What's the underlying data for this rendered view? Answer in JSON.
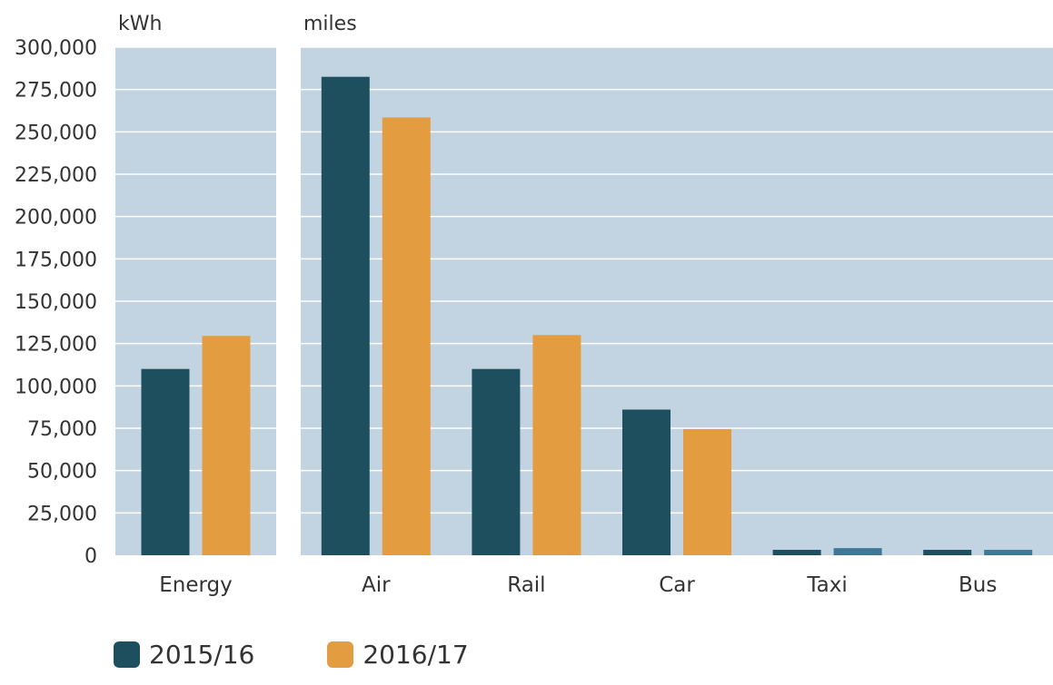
{
  "chart_data": {
    "type": "bar",
    "yticks": [
      "0",
      "25,000",
      "50,000",
      "75,000",
      "100,000",
      "125,000",
      "150,000",
      "175,000",
      "200,000",
      "225,000",
      "250,000",
      "275,000",
      "300,000"
    ],
    "ylim": [
      0,
      300000
    ],
    "grid": true,
    "legend_position": "bottom-left",
    "panels": [
      {
        "unit_label": "kWh",
        "categories": [
          "Energy"
        ],
        "series": [
          {
            "name": "2015/16",
            "values": [
              110000
            ]
          },
          {
            "name": "2016/17",
            "values": [
              129500
            ]
          }
        ]
      },
      {
        "unit_label": "miles",
        "categories": [
          "Air",
          "Rail",
          "Car",
          "Taxi",
          "Bus"
        ],
        "series": [
          {
            "name": "2015/16",
            "values": [
              282500,
              110000,
              86000,
              3200,
              3200
            ]
          },
          {
            "name": "2016/17",
            "values": [
              258500,
              130000,
              74500,
              4200,
              3200
            ]
          }
        ]
      }
    ]
  },
  "colors": {
    "plot_background": "#c2d3e1",
    "gridline": "#ffffff",
    "series_2015_16": "#1e4f5e",
    "series_2016_17": "#e49c40",
    "small_bar_2016_17": "#3f7896",
    "text": "#333333"
  },
  "legend": [
    {
      "label": "2015/16",
      "color": "#1e4f5e"
    },
    {
      "label": "2016/17",
      "color": "#e49c40"
    }
  ]
}
